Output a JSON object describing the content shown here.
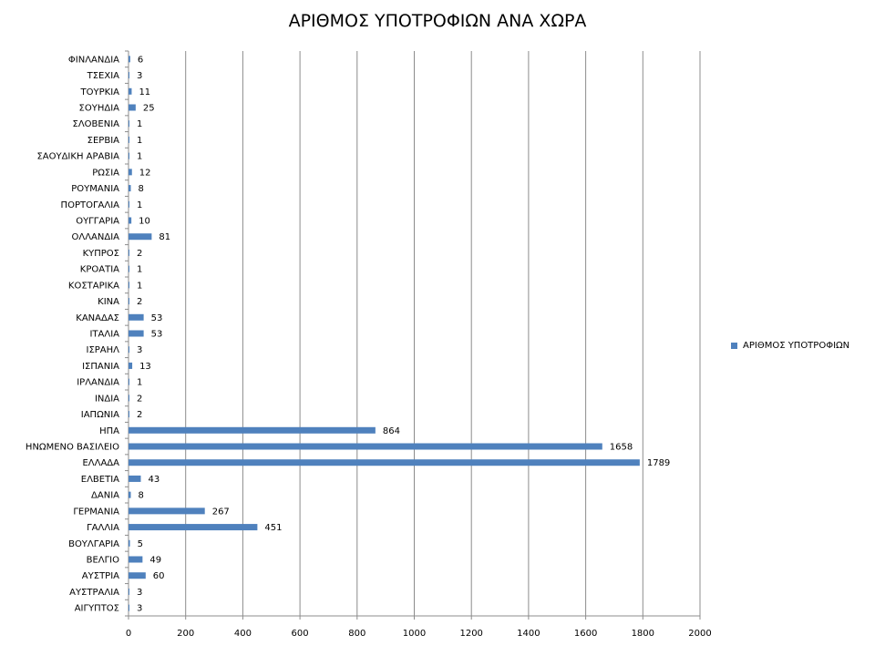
{
  "chart_data": {
    "type": "bar",
    "orientation": "horizontal",
    "title": "ΑΡΙΘΜΟΣ ΥΠΟΤΡΟΦΙΩΝ ΑΝΑ ΧΩΡΑ",
    "xlabel": "",
    "ylabel": "",
    "xlim": [
      0,
      2000
    ],
    "x_ticks": [
      0,
      200,
      400,
      600,
      800,
      1000,
      1200,
      1400,
      1600,
      1800,
      2000
    ],
    "grid": "vertical",
    "legend_position": "right",
    "bar_color": "#4f81bd",
    "categories": [
      "ΦΙΝΛΑΝΔΙΑ",
      "ΤΣΕΧΙΑ",
      "ΤΟΥΡΚΙΑ",
      "ΣΟΥΗΔΙΑ",
      "ΣΛΟΒΕΝΙΑ",
      "ΣΕΡΒΙΑ",
      "ΣΑΟΥΔΙΚΗ ΑΡΑΒΙΑ",
      "ΡΩΣΙΑ",
      "ΡΟΥΜΑΝΙΑ",
      "ΠΟΡΤΟΓΑΛΙΑ",
      "ΟΥΓΓΑΡΙΑ",
      "ΟΛΛΑΝΔΙΑ",
      "ΚΥΠΡΟΣ",
      "ΚΡΟΑΤΙΑ",
      "ΚΟΣΤΑΡΙΚΑ",
      "ΚΙΝΑ",
      "ΚΑΝΑΔΑΣ",
      "ΙΤΑΛΙΑ",
      "ΙΣΡΑΗΛ",
      "ΙΣΠΑΝΙΑ",
      "ΙΡΛΑΝΔΙΑ",
      "ΙΝΔΙΑ",
      "ΙΑΠΩΝΙΑ",
      "ΗΠΑ",
      "ΗΝΩΜΕΝΟ ΒΑΣΙΛΕΙΟ",
      "ΕΛΛΑΔΑ",
      "ΕΛΒΕΤΙΑ",
      "ΔΑΝΙΑ",
      "ΓΕΡΜΑΝΙΑ",
      "ΓΑΛΛΙΑ",
      "ΒΟΥΛΓΑΡΙΑ",
      "ΒΕΛΓΙΟ",
      "ΑΥΣΤΡΙΑ",
      "ΑΥΣΤΡΑΛΙΑ",
      "ΑΙΓΥΠΤΟΣ"
    ],
    "series": [
      {
        "name": "ΑΡΙΘΜΟΣ ΥΠΟΤΡΟΦΙΩΝ",
        "values": [
          6,
          3,
          11,
          25,
          1,
          1,
          1,
          12,
          8,
          1,
          10,
          81,
          2,
          1,
          1,
          2,
          53,
          53,
          3,
          13,
          1,
          2,
          2,
          864,
          1658,
          1789,
          43,
          8,
          267,
          451,
          5,
          49,
          60,
          3,
          3
        ]
      }
    ]
  }
}
